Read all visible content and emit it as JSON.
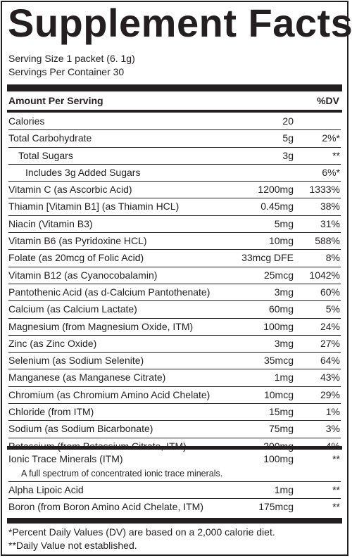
{
  "title": "Supplement Facts",
  "serving_size": "Serving Size 1 packet (6. 1g)",
  "servings_per_container": "Servings Per Container 30",
  "header": {
    "amount": "Amount Per Serving",
    "dv": "%DV"
  },
  "rows": [
    {
      "name": "Calories",
      "amount": "20",
      "dv": ""
    },
    {
      "name": "Total Carbohydrate",
      "amount": "5g",
      "dv": "2%*"
    },
    {
      "name": "Total Sugars",
      "amount": "3g",
      "dv": "**"
    },
    {
      "name": "Includes 3g Added Sugars",
      "amount": "",
      "dv": "6%*"
    },
    {
      "name": "Vitamin C (as Ascorbic Acid)",
      "amount": "1200mg",
      "dv": "1333%"
    },
    {
      "name": "Thiamin [Vitamin B1] (as Thiamin HCL)",
      "amount": "0.45mg",
      "dv": "38%"
    },
    {
      "name": "Niacin (Vitamin B3)",
      "amount": "5mg",
      "dv": "31%"
    },
    {
      "name": "Vitamin B6 (as Pyridoxine HCL)",
      "amount": "10mg",
      "dv": "588%"
    },
    {
      "name": "Folate (as 20mcg of Folic Acid)",
      "amount": "33mcg DFE",
      "dv": "8%"
    },
    {
      "name": "Vitamin B12 (as Cyanocobalamin)",
      "amount": "25mcg",
      "dv": "1042%"
    },
    {
      "name": "Pantothenic Acid (as d-Calcium Pantothenate)",
      "amount": "3mg",
      "dv": "60%"
    },
    {
      "name": "Calcium (as Calcium Lactate)",
      "amount": "60mg",
      "dv": "5%"
    },
    {
      "name": "Magnesium (from Magnesium Oxide, ITM)",
      "amount": "100mg",
      "dv": "24%"
    },
    {
      "name": "Zinc (as Zinc Oxide)",
      "amount": "3mg",
      "dv": "27%"
    },
    {
      "name": "Selenium (as Sodium Selenite)",
      "amount": "35mcg",
      "dv": "64%"
    },
    {
      "name": "Manganese (as Manganese Citrate)",
      "amount": "1mg",
      "dv": "43%"
    },
    {
      "name": "Chromium (as Chromium Amino Acid Chelate)",
      "amount": "10mcg",
      "dv": "29%"
    },
    {
      "name": "Chloride (from ITM)",
      "amount": "15mg",
      "dv": "1%"
    },
    {
      "name": "Sodium (as Sodium Bicarbonate)",
      "amount": "75mg",
      "dv": "3%"
    },
    {
      "name": "Potassium (from Potassium Citrate, ITM)",
      "amount": "200mg",
      "dv": "4%"
    }
  ],
  "rows2": [
    {
      "name": "Ionic Trace Minerals (ITM)",
      "amount": "100mg",
      "dv": "**",
      "desc": "A full spectrum of concentrated ionic trace minerals."
    },
    {
      "name": "Alpha Lipoic Acid",
      "amount": "1mg",
      "dv": "**"
    },
    {
      "name": "Boron (from Boron Amino Acid Chelate, ITM)",
      "amount": "175mcg",
      "dv": "**"
    }
  ],
  "footnotes": [
    "*Percent Daily Values (DV) are based on a 2,000 calorie diet.",
    "**Daily Value not established."
  ]
}
